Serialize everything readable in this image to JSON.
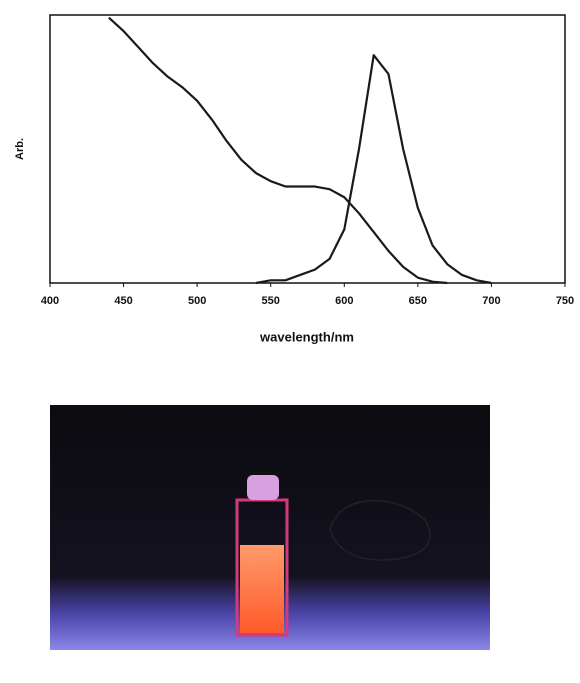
{
  "chart_data": {
    "type": "line",
    "xlabel": "wavelength/nm",
    "ylabel": "Arb.",
    "x": [
      440,
      450,
      460,
      470,
      480,
      490,
      500,
      510,
      520,
      530,
      540,
      550,
      560,
      570,
      580,
      590,
      600,
      610,
      620,
      630,
      640,
      650,
      660,
      670,
      680,
      690,
      700
    ],
    "series": [
      {
        "color": "#1a1a1a",
        "values": [
          0.99,
          0.94,
          0.88,
          0.82,
          0.77,
          0.73,
          0.68,
          0.61,
          0.53,
          0.46,
          0.41,
          0.38,
          0.36,
          0.36,
          0.36,
          0.35,
          0.32,
          0.26,
          0.19,
          0.12,
          0.06,
          0.02,
          0.005,
          0,
          null,
          null,
          null
        ]
      },
      {
        "color": "#1a1a1a",
        "values": [
          null,
          null,
          null,
          null,
          null,
          null,
          null,
          null,
          null,
          null,
          0,
          0.01,
          0.01,
          0.03,
          0.05,
          0.09,
          0.2,
          0.5,
          0.85,
          0.78,
          0.5,
          0.28,
          0.14,
          0.07,
          0.03,
          0.01,
          0
        ]
      }
    ],
    "xlim": [
      400,
      750
    ],
    "xticks": [
      400,
      450,
      500,
      550,
      600,
      650,
      700,
      750
    ],
    "ylim": [
      0,
      1
    ]
  }
}
